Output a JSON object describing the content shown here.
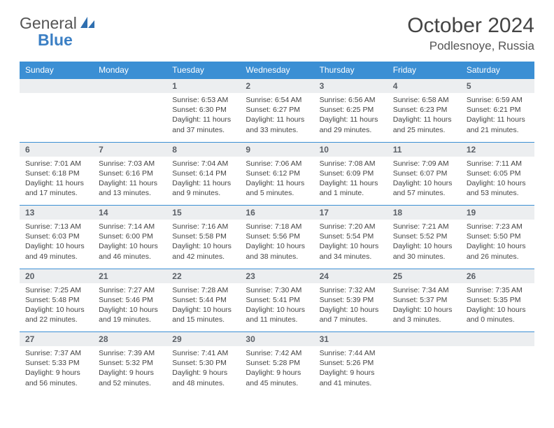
{
  "brand": {
    "text_gray": "General",
    "text_blue": "Blue"
  },
  "title": "October 2024",
  "location": "Podlesnoye, Russia",
  "colors": {
    "header_bg": "#3b8fd4",
    "header_text": "#ffffff",
    "daynum_bg": "#eceef0",
    "daynum_text": "#5a5f66",
    "body_text": "#444444",
    "rule": "#3b8fd4",
    "logo_gray": "#555555",
    "logo_blue": "#3b7fc4"
  },
  "day_headers": [
    "Sunday",
    "Monday",
    "Tuesday",
    "Wednesday",
    "Thursday",
    "Friday",
    "Saturday"
  ],
  "weeks": [
    [
      null,
      null,
      {
        "n": "1",
        "sunrise": "6:53 AM",
        "sunset": "6:30 PM",
        "daylight": "11 hours and 37 minutes."
      },
      {
        "n": "2",
        "sunrise": "6:54 AM",
        "sunset": "6:27 PM",
        "daylight": "11 hours and 33 minutes."
      },
      {
        "n": "3",
        "sunrise": "6:56 AM",
        "sunset": "6:25 PM",
        "daylight": "11 hours and 29 minutes."
      },
      {
        "n": "4",
        "sunrise": "6:58 AM",
        "sunset": "6:23 PM",
        "daylight": "11 hours and 25 minutes."
      },
      {
        "n": "5",
        "sunrise": "6:59 AM",
        "sunset": "6:21 PM",
        "daylight": "11 hours and 21 minutes."
      }
    ],
    [
      {
        "n": "6",
        "sunrise": "7:01 AM",
        "sunset": "6:18 PM",
        "daylight": "11 hours and 17 minutes."
      },
      {
        "n": "7",
        "sunrise": "7:03 AM",
        "sunset": "6:16 PM",
        "daylight": "11 hours and 13 minutes."
      },
      {
        "n": "8",
        "sunrise": "7:04 AM",
        "sunset": "6:14 PM",
        "daylight": "11 hours and 9 minutes."
      },
      {
        "n": "9",
        "sunrise": "7:06 AM",
        "sunset": "6:12 PM",
        "daylight": "11 hours and 5 minutes."
      },
      {
        "n": "10",
        "sunrise": "7:08 AM",
        "sunset": "6:09 PM",
        "daylight": "11 hours and 1 minute."
      },
      {
        "n": "11",
        "sunrise": "7:09 AM",
        "sunset": "6:07 PM",
        "daylight": "10 hours and 57 minutes."
      },
      {
        "n": "12",
        "sunrise": "7:11 AM",
        "sunset": "6:05 PM",
        "daylight": "10 hours and 53 minutes."
      }
    ],
    [
      {
        "n": "13",
        "sunrise": "7:13 AM",
        "sunset": "6:03 PM",
        "daylight": "10 hours and 49 minutes."
      },
      {
        "n": "14",
        "sunrise": "7:14 AM",
        "sunset": "6:00 PM",
        "daylight": "10 hours and 46 minutes."
      },
      {
        "n": "15",
        "sunrise": "7:16 AM",
        "sunset": "5:58 PM",
        "daylight": "10 hours and 42 minutes."
      },
      {
        "n": "16",
        "sunrise": "7:18 AM",
        "sunset": "5:56 PM",
        "daylight": "10 hours and 38 minutes."
      },
      {
        "n": "17",
        "sunrise": "7:20 AM",
        "sunset": "5:54 PM",
        "daylight": "10 hours and 34 minutes."
      },
      {
        "n": "18",
        "sunrise": "7:21 AM",
        "sunset": "5:52 PM",
        "daylight": "10 hours and 30 minutes."
      },
      {
        "n": "19",
        "sunrise": "7:23 AM",
        "sunset": "5:50 PM",
        "daylight": "10 hours and 26 minutes."
      }
    ],
    [
      {
        "n": "20",
        "sunrise": "7:25 AM",
        "sunset": "5:48 PM",
        "daylight": "10 hours and 22 minutes."
      },
      {
        "n": "21",
        "sunrise": "7:27 AM",
        "sunset": "5:46 PM",
        "daylight": "10 hours and 19 minutes."
      },
      {
        "n": "22",
        "sunrise": "7:28 AM",
        "sunset": "5:44 PM",
        "daylight": "10 hours and 15 minutes."
      },
      {
        "n": "23",
        "sunrise": "7:30 AM",
        "sunset": "5:41 PM",
        "daylight": "10 hours and 11 minutes."
      },
      {
        "n": "24",
        "sunrise": "7:32 AM",
        "sunset": "5:39 PM",
        "daylight": "10 hours and 7 minutes."
      },
      {
        "n": "25",
        "sunrise": "7:34 AM",
        "sunset": "5:37 PM",
        "daylight": "10 hours and 3 minutes."
      },
      {
        "n": "26",
        "sunrise": "7:35 AM",
        "sunset": "5:35 PM",
        "daylight": "10 hours and 0 minutes."
      }
    ],
    [
      {
        "n": "27",
        "sunrise": "7:37 AM",
        "sunset": "5:33 PM",
        "daylight": "9 hours and 56 minutes."
      },
      {
        "n": "28",
        "sunrise": "7:39 AM",
        "sunset": "5:32 PM",
        "daylight": "9 hours and 52 minutes."
      },
      {
        "n": "29",
        "sunrise": "7:41 AM",
        "sunset": "5:30 PM",
        "daylight": "9 hours and 48 minutes."
      },
      {
        "n": "30",
        "sunrise": "7:42 AM",
        "sunset": "5:28 PM",
        "daylight": "9 hours and 45 minutes."
      },
      {
        "n": "31",
        "sunrise": "7:44 AM",
        "sunset": "5:26 PM",
        "daylight": "9 hours and 41 minutes."
      },
      null,
      null
    ]
  ],
  "labels": {
    "sunrise": "Sunrise:",
    "sunset": "Sunset:",
    "daylight": "Daylight:"
  }
}
